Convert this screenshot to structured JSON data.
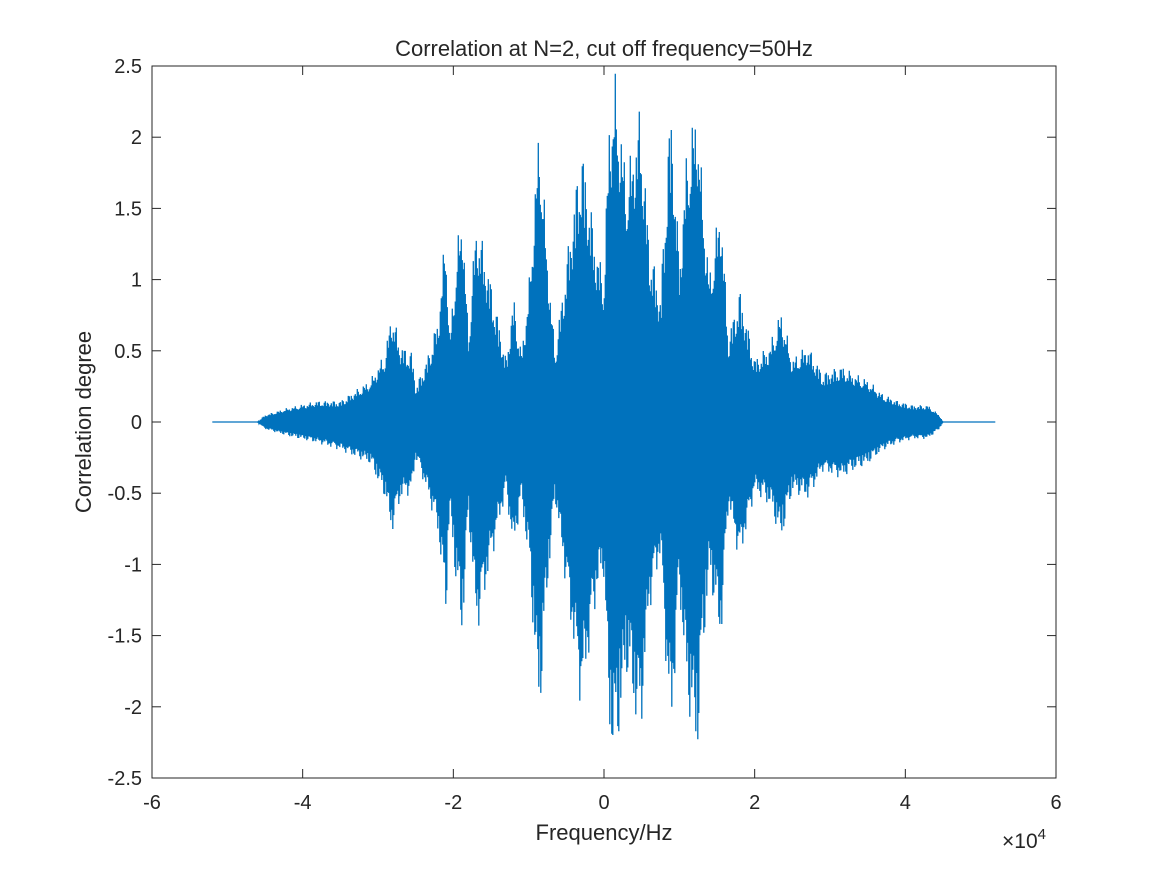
{
  "chart_data": {
    "type": "line",
    "title": "Correlation at N=2, cut off frequency=50Hz",
    "xlabel": "Frequency/Hz",
    "ylabel": "Correlation degree",
    "x_exponent_label": "×10",
    "x_exponent_power": "4",
    "xlim": [
      -60000,
      60000
    ],
    "ylim": [
      -2.5,
      2.5
    ],
    "x_ticks": [
      -60000,
      -40000,
      -20000,
      0,
      20000,
      40000,
      60000
    ],
    "x_tick_labels": [
      "-6",
      "-4",
      "-2",
      "0",
      "2",
      "4",
      "6"
    ],
    "y_ticks": [
      -2.5,
      -2,
      -1.5,
      -1,
      -0.5,
      0,
      0.5,
      1,
      1.5,
      2,
      2.5
    ],
    "y_tick_labels": [
      "-2.5",
      "-2",
      "-1.5",
      "-1",
      "-0.5",
      "0",
      "0.5",
      "1",
      "1.5",
      "2",
      "2.5"
    ],
    "grid": false,
    "series": [
      {
        "color": "#0072BD",
        "envelope": {
          "x": [
            -52000,
            -46000,
            -45000,
            -42000,
            -38000,
            -35000,
            -31000,
            -29000,
            -28200,
            -27000,
            -25500,
            -25000,
            -23500,
            -22000,
            -21000,
            -20500,
            -19500,
            -18800,
            -18000,
            -17200,
            -16800,
            -15000,
            -13000,
            -12000,
            -11000,
            -10000,
            -8600,
            -7500,
            -6500,
            -5000,
            -3000,
            -1000,
            0,
            700,
            1500,
            3000,
            4800,
            6000,
            7500,
            8600,
            9000,
            10000,
            11000,
            12400,
            13000,
            14000,
            15500,
            16500,
            18000,
            20000,
            22000,
            23500,
            25000,
            27000,
            29000,
            31500,
            33000,
            35000,
            37000,
            39000,
            41000,
            43000,
            44500,
            45000,
            52000
          ],
          "upper": [
            0,
            0,
            0.05,
            0.1,
            0.15,
            0.15,
            0.3,
            0.5,
            0.8,
            0.55,
            0.5,
            0.25,
            0.45,
            0.75,
            1.4,
            0.6,
            1.25,
            1.55,
            0.6,
            1.3,
            1.45,
            1.0,
            0.45,
            0.9,
            0.5,
            0.95,
            2.15,
            1.2,
            0.5,
            1.15,
            2.0,
            1.25,
            1.05,
            2.2,
            2.45,
            1.75,
            2.25,
            1.3,
            0.9,
            2.1,
            2.2,
            1.15,
            1.95,
            2.3,
            1.7,
            1.05,
            1.6,
            0.6,
            0.95,
            0.45,
            0.55,
            0.8,
            0.45,
            0.55,
            0.35,
            0.4,
            0.35,
            0.3,
            0.2,
            0.15,
            0.12,
            0.12,
            0.05,
            0,
            0
          ],
          "lower": [
            0,
            0,
            -0.05,
            -0.1,
            -0.15,
            -0.2,
            -0.3,
            -0.55,
            -0.8,
            -0.55,
            -0.5,
            -0.25,
            -0.5,
            -0.8,
            -1.4,
            -0.65,
            -1.25,
            -1.55,
            -0.65,
            -1.3,
            -1.5,
            -1.0,
            -0.5,
            -0.95,
            -0.55,
            -1.0,
            -2.15,
            -1.2,
            -0.55,
            -1.2,
            -2.05,
            -1.25,
            -1.1,
            -2.25,
            -2.45,
            -1.8,
            -2.3,
            -1.35,
            -0.95,
            -2.1,
            -2.2,
            -1.2,
            -2.0,
            -2.4,
            -1.75,
            -1.1,
            -1.6,
            -0.6,
            -1.0,
            -0.5,
            -0.6,
            -0.85,
            -0.5,
            -0.55,
            -0.35,
            -0.4,
            -0.35,
            -0.3,
            -0.2,
            -0.15,
            -0.12,
            -0.12,
            -0.05,
            0,
            0
          ]
        }
      }
    ]
  }
}
